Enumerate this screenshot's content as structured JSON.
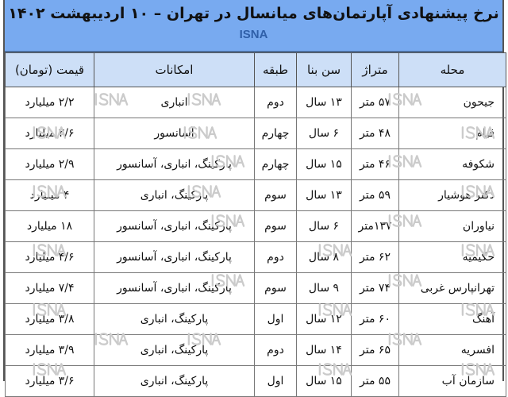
{
  "header": {
    "title": "نرخ پیشنهادی آپارتمان‌های میانسال در تهران – ۱۰ اردیبهشت ۱۴۰۲",
    "brand": "ISNA"
  },
  "watermark": "ISNA",
  "colors": {
    "title_band": "#78aaf0",
    "header_row": "#cddff7",
    "brand": "#2f5fa8"
  },
  "table": {
    "columns": [
      "محله",
      "متراژ",
      "سن بنا",
      "طبقه",
      "امکانات",
      "قیمت (تومان)"
    ],
    "rows": [
      [
        "جیحون",
        "۵۷ متر",
        "۱۳ سال",
        "دوم",
        "انباری",
        "۲/۲ میلیارد"
      ],
      [
        "قیام",
        "۴۸ متر",
        "۶ سال",
        "چهارم",
        "آسانسور",
        "۲/۶ میلیارد"
      ],
      [
        "شکوفه",
        "۴۶ متر",
        "۱۵ سال",
        "چهارم",
        "پارکینگ، انباری، آسانسور",
        "۲/۹ میلیارد"
      ],
      [
        "دکتر هوشیار",
        "۵۹ متر",
        "۱۳ سال",
        "سوم",
        "پارکینگ، انباری",
        "۴ میلیارد"
      ],
      [
        "نیاوران",
        "۱۳۷متر",
        "۶ سال",
        "سوم",
        "پارکینگ، انباری، آسانسور",
        "۱۸ میلیارد"
      ],
      [
        "حکیمیه",
        "۶۲ متر",
        "۸ سال",
        "دوم",
        "پارکینگ، انباری، آسانسور",
        "۴/۶ میلیارد"
      ],
      [
        "تهرانپارس غربی",
        "۷۴ متر",
        "۹ سال",
        "سوم",
        "پارکینگ، انباری، آسانسور",
        "۷/۴ میلیارد"
      ],
      [
        "آهنگ",
        "۶۰ متر",
        "۱۲ سال",
        "اول",
        "پارکینگ، انباری",
        "۳/۸ میلیارد"
      ],
      [
        "افسریه",
        "۶۵ متر",
        "۱۴ سال",
        "دوم",
        "پارکینگ، انباری",
        "۳/۹ میلیارد"
      ],
      [
        "سازمان آب",
        "۵۵ متر",
        "۱۵ سال",
        "اول",
        "پارکینگ، انباری",
        "۳/۶ میلیارد"
      ]
    ]
  }
}
